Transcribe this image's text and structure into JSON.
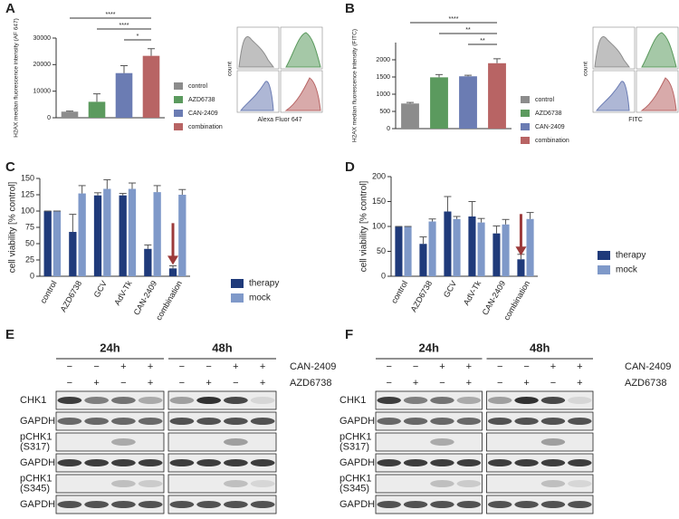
{
  "chart_data": [
    {
      "type": "bar",
      "panel": "A",
      "ylabel": "H2AX median fluorescence intensity (AF 647)",
      "categories": [
        "control",
        "AZD6738",
        "CAN-2409",
        "combination"
      ],
      "values": [
        2300,
        6000,
        16800,
        23300
      ],
      "errors": [
        200,
        3000,
        2800,
        2700
      ],
      "colors": [
        "#8c8c8c",
        "#5b9a5e",
        "#6b7cb3",
        "#b86464"
      ],
      "ylim": [
        0,
        30000
      ],
      "yticks": [
        0,
        10000,
        20000,
        30000
      ],
      "significance": [
        {
          "label": "****",
          "between": [
            "control",
            "combination"
          ]
        },
        {
          "label": "****",
          "between": [
            "AZD6738",
            "combination"
          ]
        },
        {
          "label": "*",
          "between": [
            "CAN-2409",
            "combination"
          ]
        }
      ],
      "inset_ylabel": "count",
      "inset_xlabel": "Alexa Fluor 647"
    },
    {
      "type": "bar",
      "panel": "B",
      "ylabel": "H2AX median fluorescence intensity (FITC)",
      "categories": [
        "control",
        "AZD6738",
        "CAN-2409",
        "combination"
      ],
      "values": [
        730,
        1490,
        1520,
        1900
      ],
      "errors": [
        30,
        80,
        30,
        130
      ],
      "colors": [
        "#8c8c8c",
        "#5b9a5e",
        "#6b7cb3",
        "#b86464"
      ],
      "ylim": [
        0,
        2500
      ],
      "yticks": [
        0,
        500,
        1000,
        1500,
        2000
      ],
      "significance": [
        {
          "label": "****",
          "between": [
            "control",
            "combination"
          ]
        },
        {
          "label": "**",
          "between": [
            "AZD6738",
            "combination"
          ]
        },
        {
          "label": "**",
          "between": [
            "CAN-2409",
            "combination"
          ]
        }
      ],
      "inset_ylabel": "count",
      "inset_xlabel": "FITC"
    },
    {
      "type": "grouped-bar",
      "panel": "C",
      "ylabel": "cell viability [% control]",
      "categories": [
        "control",
        "AZD6738",
        "GCV",
        "AdV-Tk",
        "CAN-2409",
        "combination"
      ],
      "series": [
        {
          "name": "therapy",
          "color": "#1f3a7a",
          "values": [
            100,
            68,
            124,
            124,
            42,
            12
          ],
          "errors": [
            0,
            27,
            4,
            3,
            6,
            4
          ]
        },
        {
          "name": "mock",
          "color": "#7f99c9",
          "values": [
            100,
            127,
            134,
            134,
            129,
            125
          ],
          "errors": [
            0,
            12,
            14,
            9,
            10,
            8
          ]
        }
      ],
      "ylim": [
        0,
        150
      ],
      "yticks": [
        0,
        25,
        50,
        75,
        100,
        125,
        150
      ]
    },
    {
      "type": "grouped-bar",
      "panel": "D",
      "ylabel": "cell viability [% control]",
      "categories": [
        "control",
        "AZD6738",
        "GCV",
        "AdV-Tk",
        "CAN-2409",
        "combination"
      ],
      "series": [
        {
          "name": "therapy",
          "color": "#1f3a7a",
          "values": [
            100,
            65,
            130,
            120,
            86,
            34
          ],
          "errors": [
            0,
            14,
            30,
            30,
            15,
            10
          ]
        },
        {
          "name": "mock",
          "color": "#7f99c9",
          "values": [
            100,
            110,
            115,
            108,
            104,
            115
          ],
          "errors": [
            0,
            5,
            5,
            8,
            10,
            13
          ]
        }
      ],
      "ylim": [
        0,
        200
      ],
      "yticks": [
        0,
        50,
        100,
        150,
        200
      ]
    }
  ],
  "blots": [
    {
      "panel": "E",
      "timepoints": [
        "24h",
        "48h"
      ],
      "treatments": [
        {
          "name": "CAN-2409",
          "signs": [
            "−",
            "−",
            "+",
            "+",
            "−",
            "−",
            "+",
            "+"
          ]
        },
        {
          "name": "AZD6738",
          "signs": [
            "−",
            "+",
            "−",
            "+",
            "−",
            "+",
            "−",
            "+"
          ]
        }
      ],
      "rows": [
        [
          "CHK1"
        ],
        [
          "GAPDH"
        ],
        [
          "pCHK1",
          "(S317)"
        ],
        [
          "GAPDH"
        ],
        [
          "pCHK1",
          "(S345)"
        ],
        [
          "GAPDH"
        ]
      ]
    },
    {
      "panel": "F",
      "timepoints": [
        "24h",
        "48h"
      ],
      "treatments": [
        {
          "name": "CAN-2409",
          "signs": [
            "−",
            "−",
            "+",
            "+",
            "−",
            "−",
            "+",
            "+"
          ]
        },
        {
          "name": "AZD6738",
          "signs": [
            "−",
            "+",
            "−",
            "+",
            "−",
            "+",
            "−",
            "+"
          ]
        }
      ],
      "rows": [
        [
          "CHK1"
        ],
        [
          "GAPDH"
        ],
        [
          "pCHK1",
          "(S317)"
        ],
        [
          "GAPDH"
        ],
        [
          "pCHK1",
          "(S345)"
        ],
        [
          "GAPDH"
        ]
      ]
    }
  ]
}
